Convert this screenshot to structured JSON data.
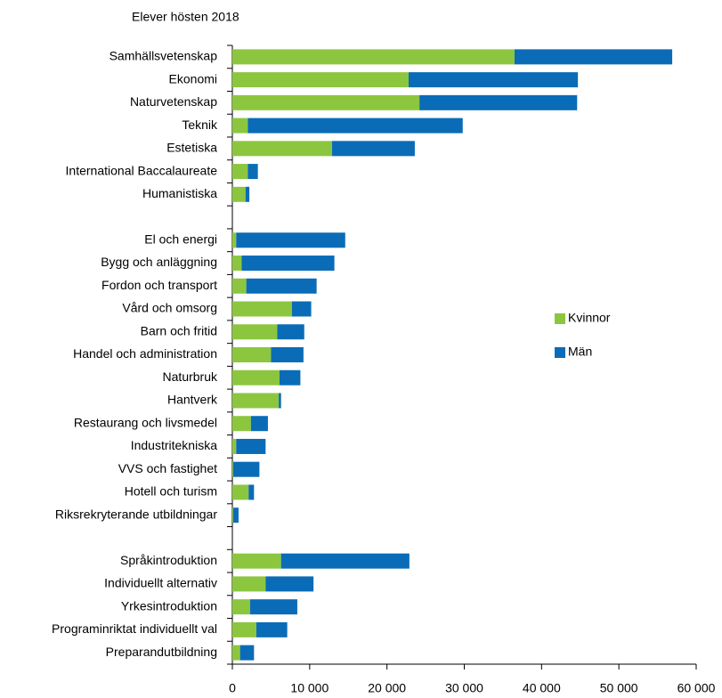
{
  "chart_data": {
    "type": "stacked-barh",
    "title": "Elever hösten 2018",
    "categories": [
      "Samhällsvetenskap",
      "Ekonomi",
      "Naturvetenskap",
      "Teknik",
      "Estetiska",
      "International Baccalaureate",
      "Humanistiska",
      null,
      "El och energi",
      "Bygg och anläggning",
      "Fordon och transport",
      "Vård och omsorg",
      "Barn och fritid",
      "Handel och administration",
      "Naturbruk",
      "Hantverk",
      "Restaurang och livsmedel",
      "Industritekniska",
      "VVS och fastighet",
      "Hotell och turism",
      "Riksrekryterande utbildningar",
      null,
      "Språkintroduktion",
      "Individuellt alternativ",
      "Yrkesintroduktion",
      "Programinriktat individuellt val",
      "Preparandutbildning"
    ],
    "series": [
      {
        "name": "Kvinnor",
        "color": "#8cc63f",
        "values": [
          36500,
          22800,
          24200,
          2000,
          12900,
          2000,
          1700,
          null,
          500,
          1200,
          1800,
          7700,
          5800,
          5000,
          6100,
          6000,
          2400,
          500,
          100,
          2100,
          100,
          null,
          6300,
          4300,
          2300,
          3100,
          1000
        ]
      },
      {
        "name": "Män",
        "color": "#0a6cb7",
        "values": [
          20400,
          21900,
          20400,
          27800,
          10700,
          1300,
          500,
          null,
          14100,
          12000,
          9100,
          2500,
          3500,
          4200,
          2700,
          300,
          2200,
          3800,
          3400,
          700,
          700,
          null,
          16600,
          6200,
          6100,
          4000,
          1800
        ]
      }
    ],
    "xlim": [
      0,
      60000
    ],
    "xticks": [
      0,
      {
        "value": 10000,
        "label": "10 000"
      },
      {
        "value": 20000,
        "label": "20 000"
      },
      {
        "value": 30000,
        "label": "30 000"
      },
      {
        "value": 40000,
        "label": "40 000"
      },
      {
        "value": 50000,
        "label": "50 000"
      },
      {
        "value": 60000,
        "label": "60 000"
      }
    ],
    "legend": "right"
  }
}
